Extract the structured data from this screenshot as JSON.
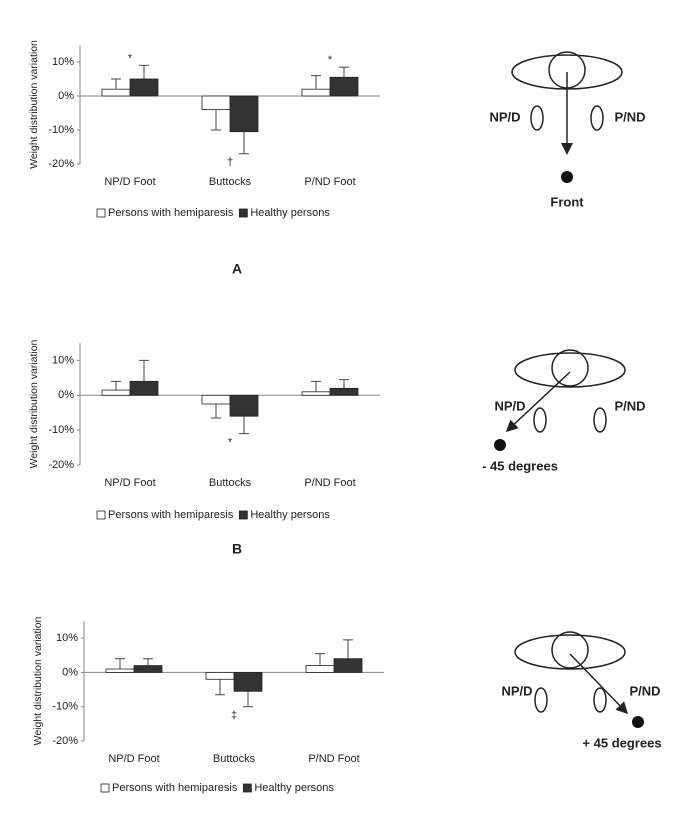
{
  "chart_data": [
    {
      "type": "bar",
      "ylabel": "Weight distribution variation",
      "categories": [
        "NP/D Foot",
        "Buttocks",
        "P/ND Foot"
      ],
      "series": [
        {
          "name": "Persons with hemiparesis",
          "color": "#ffffff",
          "values": [
            2,
            -4,
            2
          ],
          "errors": [
            3,
            6,
            4
          ]
        },
        {
          "name": "Healthy persons",
          "color": "#333333",
          "values": [
            5,
            -10.5,
            5.5
          ],
          "errors": [
            4,
            6.5,
            3
          ]
        }
      ],
      "annotations": [
        "*",
        "†",
        "*"
      ],
      "ylim": [
        -20,
        15
      ],
      "yticks": [
        {
          "value": 10,
          "label": "10%"
        },
        {
          "value": 0,
          "label": "0%"
        },
        {
          "value": -10,
          "label": "-10%"
        },
        {
          "value": -20,
          "label": "-20%"
        }
      ]
    },
    {
      "type": "bar",
      "ylabel": "Weight distribution variation",
      "categories": [
        "NP/D Foot",
        "Buttocks",
        "P/ND Foot"
      ],
      "series": [
        {
          "name": "Persons with hemiparesis",
          "color": "#ffffff",
          "values": [
            1.5,
            -2.5,
            1
          ],
          "errors": [
            2.5,
            4,
            3
          ]
        },
        {
          "name": "Healthy persons",
          "color": "#333333",
          "values": [
            4,
            -6,
            2
          ],
          "errors": [
            6,
            5,
            2.5
          ]
        }
      ],
      "annotations": [
        null,
        "*",
        null
      ],
      "ylim": [
        -20,
        15
      ],
      "yticks": [
        {
          "value": 10,
          "label": "10%"
        },
        {
          "value": 0,
          "label": "0%"
        },
        {
          "value": -10,
          "label": "-10%"
        },
        {
          "value": -20,
          "label": "-20%"
        }
      ]
    },
    {
      "type": "bar",
      "ylabel": "Weight distribution variation",
      "categories": [
        "NP/D Foot",
        "Buttocks",
        "P/ND Foot"
      ],
      "series": [
        {
          "name": "Persons with hemiparesis",
          "color": "#ffffff",
          "values": [
            1,
            -2,
            2
          ],
          "errors": [
            3,
            4.5,
            3.5
          ]
        },
        {
          "name": "Healthy persons",
          "color": "#333333",
          "values": [
            2,
            -5.5,
            4
          ],
          "errors": [
            2,
            4.5,
            5.5
          ]
        }
      ],
      "annotations": [
        null,
        "‡",
        null
      ],
      "ylim": [
        -20,
        15
      ],
      "yticks": [
        {
          "value": 10,
          "label": "10%"
        },
        {
          "value": 0,
          "label": "0%"
        },
        {
          "value": -10,
          "label": "-10%"
        },
        {
          "value": -20,
          "label": "-20%"
        }
      ]
    }
  ],
  "diagrams": [
    {
      "panel_label": "A",
      "left": "NP/D",
      "right": "P/ND",
      "direction": "Front"
    },
    {
      "panel_label": "B",
      "left": "NP/D",
      "right": "P/ND",
      "direction": "- 45 degrees"
    },
    {
      "left": "NP/D",
      "right": "P/ND",
      "direction": "+ 45 degrees"
    }
  ]
}
